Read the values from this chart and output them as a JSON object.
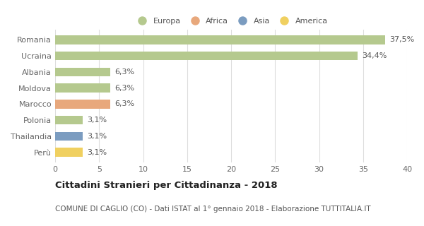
{
  "countries": [
    "Romania",
    "Ucraina",
    "Albania",
    "Moldova",
    "Marocco",
    "Polonia",
    "Thailandia",
    "Perù"
  ],
  "values": [
    37.5,
    34.4,
    6.3,
    6.3,
    6.3,
    3.1,
    3.1,
    3.1
  ],
  "labels": [
    "37,5%",
    "34,4%",
    "6,3%",
    "6,3%",
    "6,3%",
    "3,1%",
    "3,1%",
    "3,1%"
  ],
  "bar_colors": [
    "#b5c98e",
    "#b5c98e",
    "#b5c98e",
    "#b5c98e",
    "#e8a87c",
    "#b5c98e",
    "#7b9cc0",
    "#f0d060"
  ],
  "legend_labels": [
    "Europa",
    "Africa",
    "Asia",
    "America"
  ],
  "legend_colors": [
    "#b5c98e",
    "#e8a87c",
    "#7b9cc0",
    "#f0d060"
  ],
  "xlim": [
    0,
    40
  ],
  "xticks": [
    0,
    5,
    10,
    15,
    20,
    25,
    30,
    35,
    40
  ],
  "title": "Cittadini Stranieri per Cittadinanza - 2018",
  "subtitle": "COMUNE DI CAGLIO (CO) - Dati ISTAT al 1° gennaio 2018 - Elaborazione TUTTITALIA.IT",
  "bg_color": "#ffffff",
  "grid_color": "#dddddd",
  "bar_height": 0.55,
  "label_fontsize": 8.0,
  "tick_fontsize": 8.0,
  "title_fontsize": 9.5,
  "subtitle_fontsize": 7.5
}
